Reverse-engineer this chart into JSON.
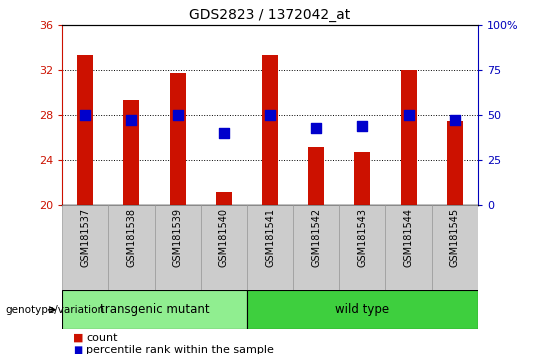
{
  "title": "GDS2823 / 1372042_at",
  "samples": [
    "GSM181537",
    "GSM181538",
    "GSM181539",
    "GSM181540",
    "GSM181541",
    "GSM181542",
    "GSM181543",
    "GSM181544",
    "GSM181545"
  ],
  "counts": [
    33.3,
    29.3,
    31.7,
    21.2,
    33.3,
    25.2,
    24.7,
    32.0,
    27.5
  ],
  "percentiles_pct": [
    50,
    47,
    50,
    40,
    50,
    43,
    44,
    50,
    47
  ],
  "bar_color": "#CC1100",
  "dot_color": "#0000CC",
  "ylim_left": [
    20,
    36
  ],
  "ylim_right": [
    0,
    100
  ],
  "yticks_left": [
    20,
    24,
    28,
    32,
    36
  ],
  "yticks_right": [
    0,
    25,
    50,
    75,
    100
  ],
  "ytick_labels_right": [
    "0",
    "25",
    "50",
    "75",
    "100%"
  ],
  "groups": [
    {
      "label": "transgenic mutant",
      "start": 0,
      "end": 3,
      "color": "#90EE90"
    },
    {
      "label": "wild type",
      "start": 4,
      "end": 8,
      "color": "#3ECF3E"
    }
  ],
  "group_label": "genotype/variation",
  "legend_count": "count",
  "legend_percentile": "percentile rank within the sample",
  "bar_color_hex": "#CC1100",
  "dot_color_hex": "#0000CC",
  "tick_color_left": "#CC1100",
  "tick_color_right": "#0000BB",
  "bar_width": 0.35,
  "dot_size": 45,
  "cell_bg_color": "#CCCCCC",
  "cell_edge_color": "#999999"
}
